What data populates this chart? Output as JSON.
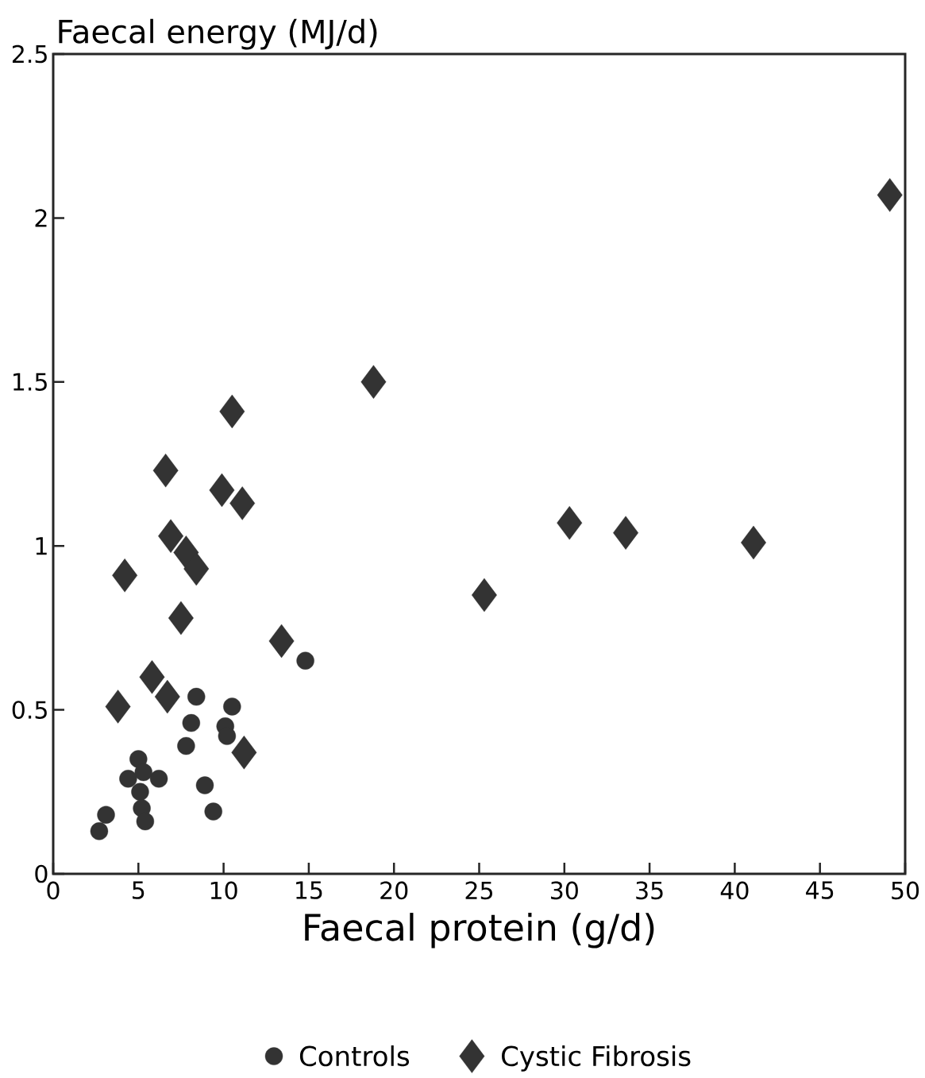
{
  "chart_data": {
    "type": "scatter",
    "ylabel": "Faecal energy (MJ/d)",
    "xlabel": "Faecal protein (g/d)",
    "xlim": [
      0,
      50
    ],
    "ylim": [
      0,
      2.5
    ],
    "xticks": [
      0,
      5,
      10,
      15,
      20,
      25,
      30,
      35,
      40,
      45,
      50
    ],
    "yticks": [
      0,
      0.5,
      1,
      1.5,
      2,
      2.5
    ],
    "legend": "bottom",
    "series": [
      {
        "name": "Controls",
        "color": "#333333",
        "marker": "circle",
        "x": [
          14.8,
          8.4,
          8.1,
          7.8,
          10.5,
          10.1,
          10.2,
          5.0,
          4.4,
          6.2,
          5.3,
          5.1,
          5.2,
          5.4,
          8.9,
          9.4,
          3.1,
          2.7
        ],
        "values": [
          0.65,
          0.54,
          0.46,
          0.39,
          0.51,
          0.45,
          0.42,
          0.35,
          0.29,
          0.29,
          0.31,
          0.25,
          0.2,
          0.16,
          0.27,
          0.19,
          0.18,
          0.13
        ]
      },
      {
        "name": "Cystic Fibrosis",
        "color": "#333333",
        "marker": "diamond",
        "x": [
          49.1,
          18.8,
          10.5,
          6.6,
          9.9,
          11.1,
          6.9,
          7.8,
          8.4,
          4.2,
          7.5,
          30.3,
          33.6,
          41.1,
          25.3,
          13.4,
          3.8,
          5.8,
          6.7,
          11.2
        ],
        "values": [
          2.07,
          1.5,
          1.41,
          1.23,
          1.17,
          1.13,
          1.03,
          0.98,
          0.93,
          0.91,
          0.78,
          1.07,
          1.04,
          1.01,
          0.85,
          0.71,
          0.51,
          0.6,
          0.54,
          0.37
        ]
      }
    ]
  }
}
